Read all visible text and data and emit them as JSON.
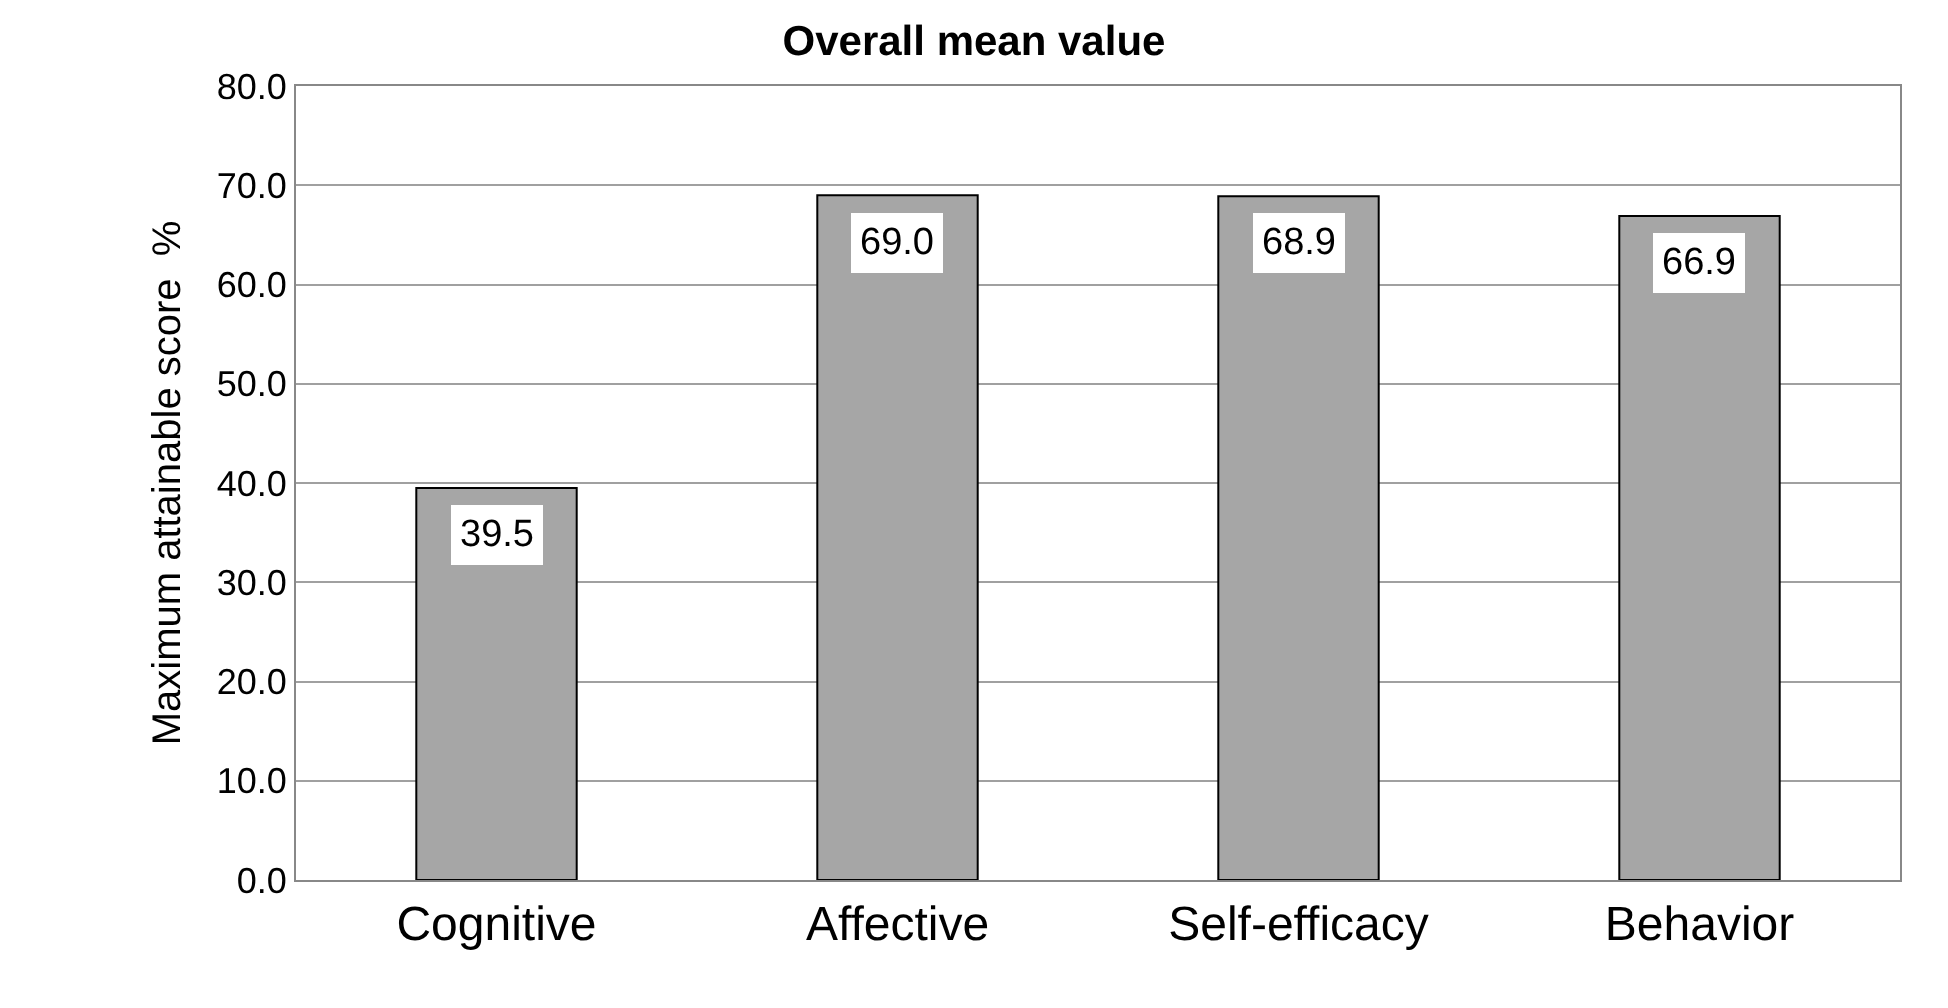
{
  "chart_data": {
    "type": "bar",
    "title": "Overall mean value",
    "ylabel": "Maximum attainable score  %",
    "categories": [
      "Cognitive",
      "Affective",
      "Self-efficacy",
      "Behavior"
    ],
    "values": [
      39.5,
      69.0,
      68.9,
      66.9
    ],
    "value_labels": [
      "39.5",
      "69.0",
      "68.9",
      "66.9"
    ],
    "color": "#a6a6a6",
    "ylim": [
      0,
      80
    ],
    "yticks": [
      {
        "value": 0,
        "label": "0.0"
      },
      {
        "value": 10,
        "label": "10.0"
      },
      {
        "value": 20,
        "label": "20.0"
      },
      {
        "value": 30,
        "label": "30.0"
      },
      {
        "value": 40,
        "label": "40.0"
      },
      {
        "value": 50,
        "label": "50.0"
      },
      {
        "value": 60,
        "label": "60.0"
      },
      {
        "value": 70,
        "label": "70.0"
      },
      {
        "value": 80,
        "label": "80.0"
      }
    ],
    "grid": "y",
    "legend": false
  }
}
